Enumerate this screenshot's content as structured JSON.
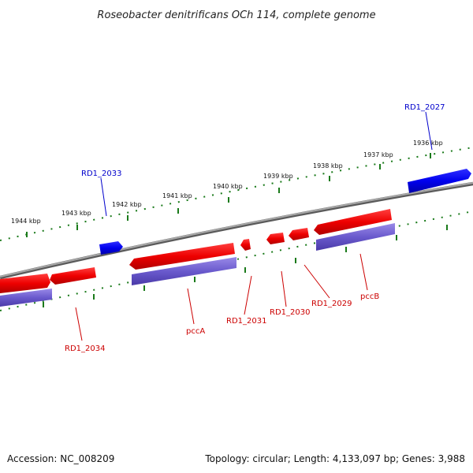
{
  "title": "Roseobacter denitrificans OCh 114, complete genome",
  "footer": {
    "accession": "Accession: NC_008209",
    "summary": "Topology: circular; Length: 4,133,097 bp; Genes: 3,988"
  },
  "scale_labels": [
    "1936 kbp",
    "1937 kbp",
    "1938 kbp",
    "1939 kbp",
    "1940 kbp",
    "1941 kbp",
    "1942 kbp",
    "1943 kbp",
    "1944 kbp"
  ],
  "genes": {
    "rd1_2027": "RD1_2027",
    "rd1_2033": "RD1_2033",
    "rd1_2034": "RD1_2034",
    "pccA": "pccA",
    "rd1_2031": "RD1_2031",
    "rd1_2030": "RD1_2030",
    "rd1_2029": "RD1_2029",
    "pccB": "pccB"
  },
  "colors": {
    "forward_gene": "#0000ee",
    "reverse_gene": "#ee0000",
    "protein_band": "#6a5acd",
    "backbone": "#808080",
    "scale": "#1a7a1a"
  }
}
